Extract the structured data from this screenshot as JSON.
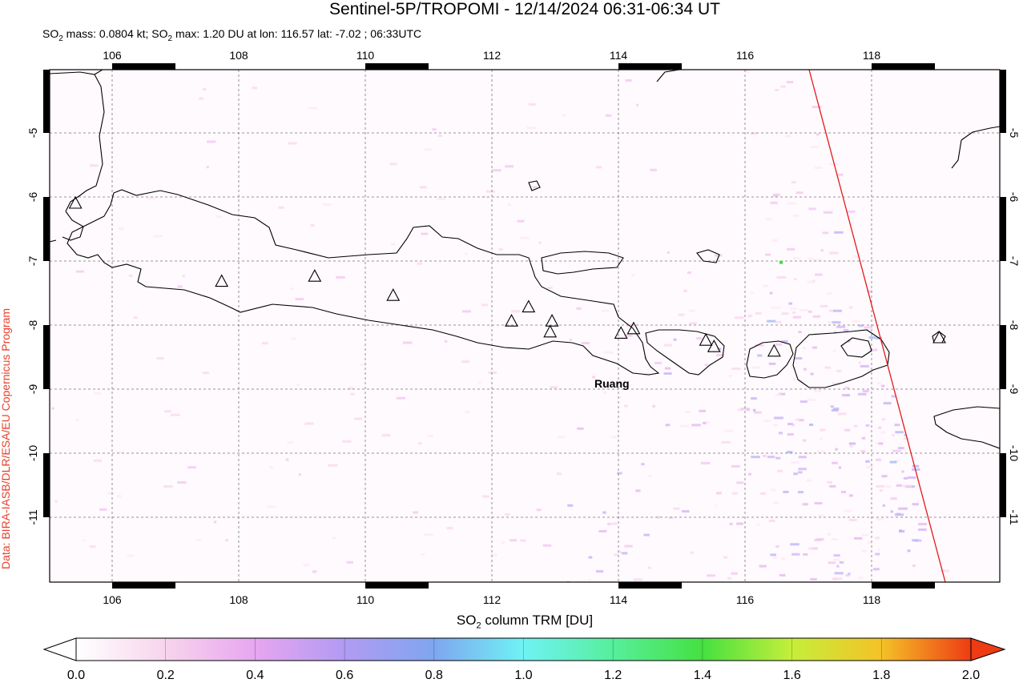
{
  "title": "Sentinel-5P/TROPOMI - 12/14/2024 06:31-06:34 UT",
  "subtitle": {
    "part1": "SO",
    "sub1": "2",
    "part2": " mass: 0.0804 kt; SO",
    "sub2": "2",
    "part3": " max: 1.20 DU at lon: 116.57 lat: -7.02 ; 06:33UTC"
  },
  "credit": "Data: BIRA-IASB/DLR/ESA/EU Copernicus Program",
  "map": {
    "lon_ticks": [
      "106",
      "108",
      "110",
      "112",
      "114",
      "116",
      "118"
    ],
    "lat_ticks": [
      "-5",
      "-6",
      "-7",
      "-8",
      "-9",
      "-10",
      "-11"
    ],
    "lon_values": [
      106,
      108,
      110,
      112,
      114,
      116,
      118
    ],
    "lat_values": [
      -5,
      -6,
      -7,
      -8,
      -9,
      -10,
      -11
    ],
    "lon_range": [
      105.0,
      120.0
    ],
    "lat_range": [
      -12.0,
      -4.0
    ],
    "volcano_label": "Ruang",
    "volcanoes": [
      [
        105.42,
        -6.1
      ],
      [
        107.73,
        -7.32
      ],
      [
        109.2,
        -7.24
      ],
      [
        110.44,
        -7.54
      ],
      [
        112.31,
        -7.94
      ],
      [
        112.58,
        -7.72
      ],
      [
        112.95,
        -7.94
      ],
      [
        112.92,
        -8.11
      ],
      [
        114.04,
        -8.13
      ],
      [
        114.24,
        -8.06
      ],
      [
        115.38,
        -8.24
      ],
      [
        115.51,
        -8.34
      ],
      [
        116.46,
        -8.41
      ],
      [
        119.07,
        -8.2
      ]
    ],
    "max_marker": {
      "lon": 116.57,
      "lat": -7.02,
      "color": "#39e040"
    },
    "swath_edge_color": "#e41a1a"
  },
  "colorbar": {
    "label_main": "SO",
    "label_sub": "2",
    "label_rest": " column TRM [DU]",
    "ticks": [
      "0.0",
      "0.2",
      "0.4",
      "0.6",
      "0.8",
      "1.0",
      "1.2",
      "1.4",
      "1.6",
      "1.8",
      "2.0"
    ],
    "colors": [
      "#ffffff",
      "#f7d4ec",
      "#e7a6f0",
      "#b19bf2",
      "#7fa6f0",
      "#6ff2f4",
      "#56ef9c",
      "#46e041",
      "#c6ee3a",
      "#f4c227",
      "#ee3b14"
    ]
  }
}
